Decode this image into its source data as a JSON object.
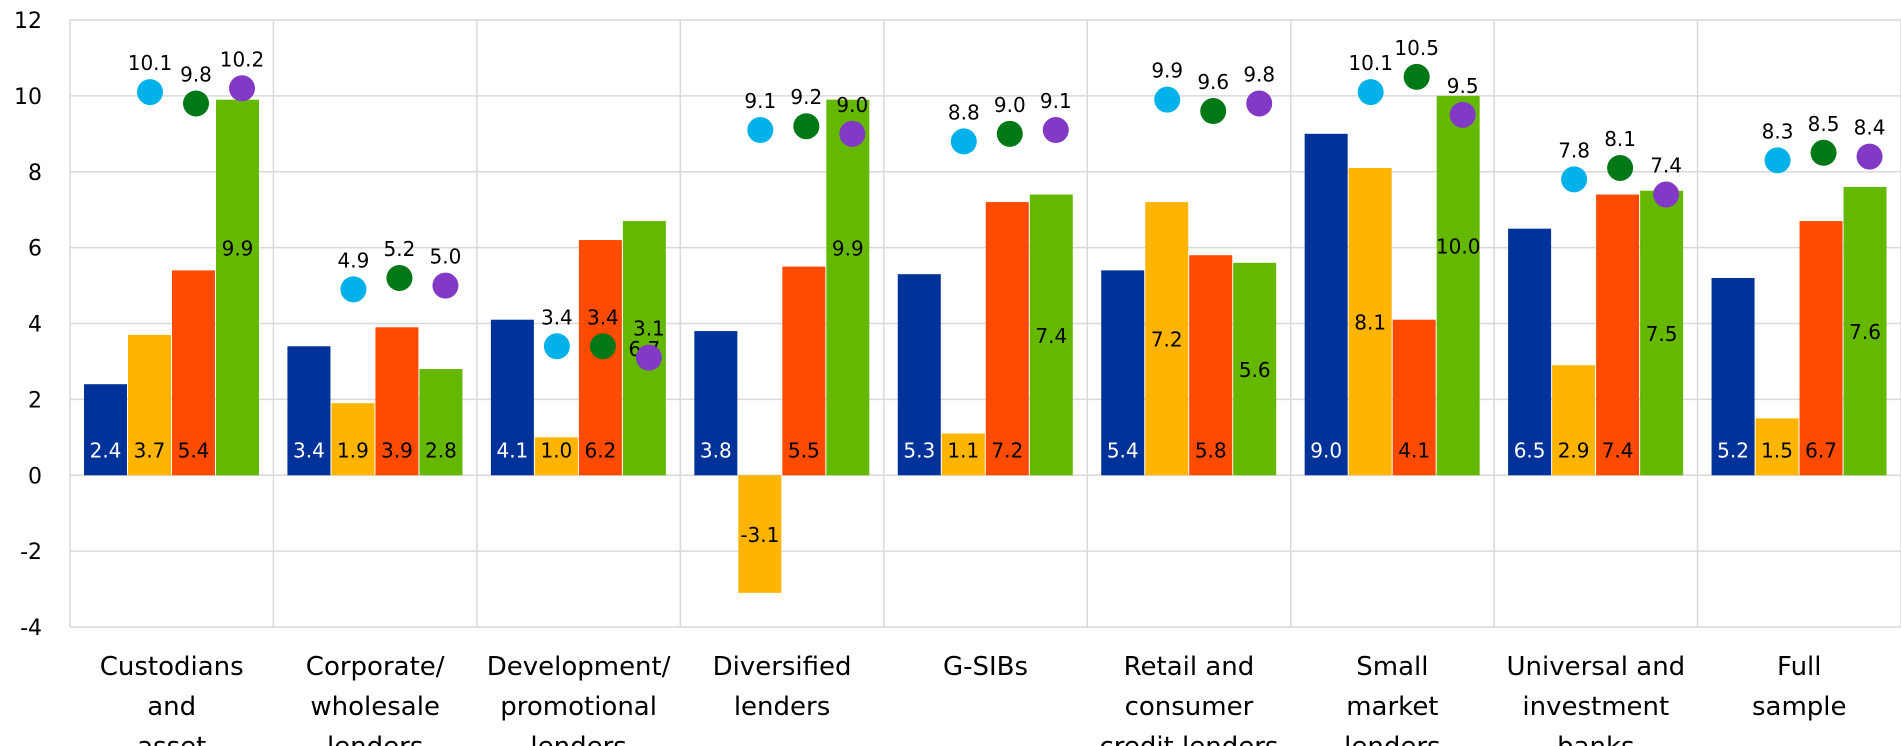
{
  "chart_data": {
    "type": "bar",
    "ylim": [
      -4,
      12
    ],
    "yticks": [
      -4,
      -2,
      0,
      2,
      4,
      6,
      8,
      10,
      12
    ],
    "grid": true,
    "categories": [
      [
        "Custodians",
        "and",
        "asset"
      ],
      [
        "Corporate/",
        "wholesale",
        "lenders"
      ],
      [
        "Development/",
        "promotional",
        "lenders"
      ],
      [
        "Diversified",
        "lenders"
      ],
      [
        "G-SIBs"
      ],
      [
        "Retail and",
        "consumer",
        "credit lenders"
      ],
      [
        "Small",
        "market",
        "lenders"
      ],
      [
        "Universal and",
        "investment",
        "banks"
      ],
      [
        "Full",
        "sample"
      ]
    ],
    "bar_series": [
      {
        "color": "#003299",
        "label_color": "#ffffff",
        "values": [
          2.4,
          3.4,
          4.1,
          3.8,
          5.3,
          5.4,
          9.0,
          6.5,
          5.2
        ]
      },
      {
        "color": "#ffb400",
        "label_color": "#000000",
        "values": [
          3.7,
          1.9,
          1.0,
          -3.1,
          1.1,
          7.2,
          8.1,
          2.9,
          1.5
        ]
      },
      {
        "color": "#ff4b00",
        "label_color": "#000000",
        "values": [
          5.4,
          3.9,
          6.2,
          5.5,
          7.2,
          5.8,
          4.1,
          7.4,
          6.7
        ]
      },
      {
        "color": "#65b800",
        "label_color": "#000000",
        "values": [
          9.9,
          2.8,
          6.7,
          9.9,
          7.4,
          5.6,
          10.0,
          7.5,
          7.6
        ]
      }
    ],
    "bar_labels": [
      [
        "2.4",
        "3.4",
        "4.1",
        "3.8",
        "5.3",
        "5.4",
        "9.0",
        "6.5",
        "5.2"
      ],
      [
        "3.7",
        "1.9",
        "1.0",
        "-3.1",
        "1.1",
        "7.2",
        "8.1",
        "2.9",
        "1.5"
      ],
      [
        "5.4",
        "3.9",
        "6.2",
        "5.5",
        "7.2",
        "5.8",
        "4.1",
        "7.4",
        "6.7"
      ],
      [
        "9.9",
        "2.8",
        "6.7",
        "9.9",
        "7.4",
        "5.6",
        "10.0",
        "7.5",
        "7.6"
      ]
    ],
    "dot_series": [
      {
        "color": "#00b1ea",
        "values": [
          10.1,
          4.9,
          3.4,
          9.1,
          8.8,
          9.9,
          10.1,
          7.8,
          8.3
        ]
      },
      {
        "color": "#007816",
        "values": [
          9.8,
          5.2,
          3.4,
          9.2,
          9.0,
          9.6,
          10.5,
          8.1,
          8.5
        ]
      },
      {
        "color": "#8139c6",
        "values": [
          10.2,
          5.0,
          3.1,
          9.0,
          9.1,
          9.8,
          9.5,
          7.4,
          8.4
        ]
      }
    ],
    "dot_labels": [
      [
        "10.1",
        "4.9",
        "3.4",
        "9.1",
        "8.8",
        "9.9",
        "10.1",
        "7.8",
        "8.3"
      ],
      [
        "9.8",
        "5.2",
        "3.4",
        "9.2",
        "9.0",
        "9.6",
        "10.5",
        "8.1",
        "8.5"
      ],
      [
        "10.2",
        "5.0",
        "3.1",
        "9.0",
        "9.1",
        "9.8",
        "9.5",
        "7.4",
        "8.4"
      ]
    ]
  }
}
